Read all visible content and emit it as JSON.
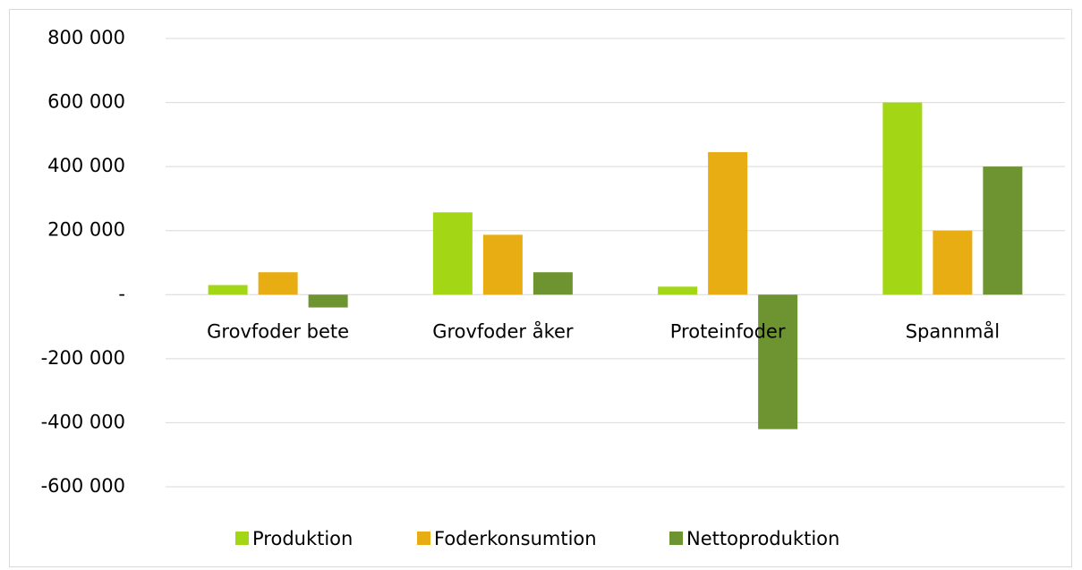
{
  "chart_data": {
    "type": "bar",
    "categories": [
      "Grovfoder bete",
      "Grovfoder åker",
      "Proteinfoder",
      "Spannmål"
    ],
    "series": [
      {
        "name": "Produktion",
        "color": "#a3d615",
        "values": [
          30000,
          257000,
          25000,
          600000
        ]
      },
      {
        "name": "Foderkonsumtion",
        "color": "#e8ad13",
        "values": [
          70000,
          187000,
          445000,
          200000
        ]
      },
      {
        "name": "Nettoproduktion",
        "color": "#6e9432",
        "values": [
          -40000,
          70000,
          -420000,
          400000
        ]
      }
    ],
    "ylim": [
      -600000,
      800000
    ],
    "yticks": [
      {
        "value": -600000,
        "label": "-600 000"
      },
      {
        "value": -400000,
        "label": "-400 000"
      },
      {
        "value": -200000,
        "label": "-200 000"
      },
      {
        "value": 0,
        "label": "-"
      },
      {
        "value": 200000,
        "label": "200 000"
      },
      {
        "value": 400000,
        "label": "400 000"
      },
      {
        "value": 600000,
        "label": "600 000"
      },
      {
        "value": 800000,
        "label": "800 000"
      }
    ],
    "grid": true,
    "legend": "bottom"
  }
}
